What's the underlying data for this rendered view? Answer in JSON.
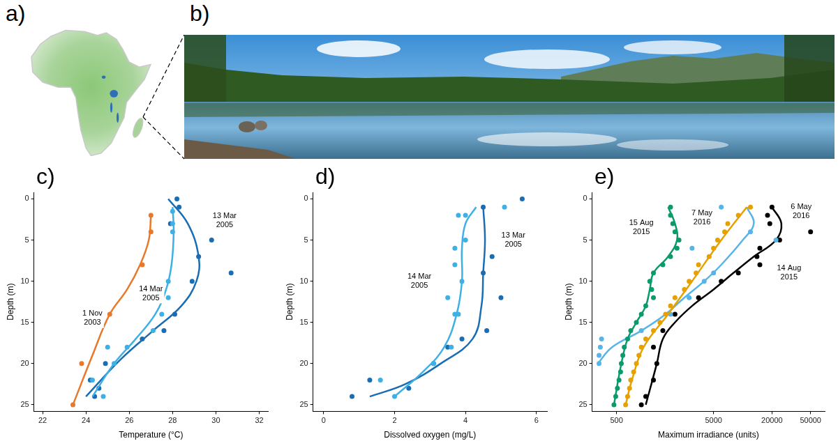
{
  "panel_labels": [
    "a)",
    "b)"
  ],
  "chart_data": [
    {
      "type": "scatter",
      "panel_label": "c)",
      "x_label": "Temperature (°C)",
      "y_label": "Depth (m)",
      "xlim": [
        21.6,
        32.4
      ],
      "xticks": [
        22,
        24,
        26,
        28,
        30,
        32
      ],
      "ylim": [
        25.8,
        -0.8
      ],
      "yticks": [
        0,
        5,
        10,
        15,
        20,
        25
      ],
      "grid": false,
      "series": [
        {
          "color": "#e8792b",
          "marker": "circle",
          "x": [
            27.0,
            27.0,
            26.6,
            25.1,
            23.8,
            23.4
          ],
          "values": [
            2,
            4,
            8,
            14,
            20,
            25
          ],
          "fit": {
            "x": [
              27.0,
              26.9,
              26.5,
              25.9,
              25.1,
              24.3,
              23.4
            ],
            "values": [
              2,
              5,
              8,
              11,
              14,
              19,
              25
            ]
          }
        },
        {
          "color": "#3fb0e6",
          "marker": "circle",
          "x": [
            28.0,
            28.0,
            28.0,
            27.8,
            27.8,
            27.5,
            27.1,
            25.9,
            25.0,
            25.3,
            24.3,
            24.8
          ],
          "values": [
            1.5,
            3,
            4,
            10,
            12,
            14,
            16,
            18,
            18,
            20,
            22,
            24
          ],
          "fit": {
            "x": [
              28.0,
              28.05,
              27.95,
              27.7,
              27.2,
              26.3,
              25.3,
              24.3
            ],
            "values": [
              1,
              4,
              8,
              11,
              14,
              17,
              20,
              24
            ]
          }
        },
        {
          "color": "#1a6db3",
          "marker": "circle",
          "x": [
            28.2,
            28.3,
            27.9,
            29.8,
            29.2,
            30.7,
            28.9,
            28.1,
            27.6,
            26.6,
            24.9,
            24.2,
            24.6,
            24.4
          ],
          "values": [
            0,
            1,
            3,
            5,
            7,
            9,
            10,
            14,
            16,
            17,
            20,
            22,
            23,
            24
          ],
          "fit": {
            "x": [
              27.8,
              28.7,
              29.2,
              29.1,
              28.4,
              27.1,
              25.6,
              24.0
            ],
            "values": [
              0,
              3,
              7,
              10,
              13,
              16,
              19.5,
              24
            ]
          }
        }
      ],
      "annotations": [
        {
          "text": "13 Mar 2005",
          "x": 30.4,
          "y": 2.6
        },
        {
          "text": "14 Mar 2005",
          "x": 27.0,
          "y": 11.5
        },
        {
          "text": "1 Nov 2003",
          "x": 24.3,
          "y": 14.5
        }
      ]
    },
    {
      "type": "scatter",
      "panel_label": "d)",
      "x_label": "Dissolved oxygen (mg/L)",
      "y_label": "Depth (m)",
      "xlim": [
        -0.3,
        6.3
      ],
      "xticks": [
        0,
        2,
        4,
        6
      ],
      "ylim": [
        25.8,
        -0.8
      ],
      "yticks": [
        0,
        5,
        10,
        15,
        20,
        25
      ],
      "grid": false,
      "series": [
        {
          "color": "#3fb0e6",
          "marker": "circle",
          "x": [
            5.1,
            4.0,
            3.8,
            4.0,
            3.7,
            3.7,
            3.9,
            3.5,
            3.8,
            3.7,
            3.6,
            3.1,
            1.6,
            2.0
          ],
          "values": [
            1,
            2,
            2,
            5,
            6,
            8,
            10,
            12,
            14,
            14,
            18,
            20,
            22,
            24
          ],
          "fit": {
            "x": [
              4.3,
              4.0,
              3.9,
              3.9,
              3.75,
              3.4,
              2.8,
              2.0
            ],
            "values": [
              1,
              3,
              6,
              10,
              14,
              18,
              21,
              24
            ]
          }
        },
        {
          "color": "#1a6db3",
          "marker": "circle",
          "x": [
            5.6,
            4.5,
            4.75,
            4.5,
            5.0,
            4.6,
            3.9,
            3.5,
            3.1,
            1.3,
            2.4,
            0.8
          ],
          "values": [
            0,
            1,
            7,
            9,
            12,
            16,
            17,
            18,
            20,
            22,
            23,
            24
          ],
          "fit": {
            "x": [
              4.5,
              4.55,
              4.5,
              4.45,
              4.2,
              3.3,
              2.3,
              1.3
            ],
            "values": [
              1,
              5,
              9,
              13,
              17,
              20,
              22.5,
              24
            ]
          }
        }
      ],
      "annotations": [
        {
          "text": "13 Mar 2005",
          "x": 5.35,
          "y": 5
        },
        {
          "text": "14 Mar 2005",
          "x": 2.7,
          "y": 10
        }
      ]
    },
    {
      "type": "scatter",
      "panel_label": "e)",
      "x_label": "Maximum irradiance (units)",
      "y_label": "Depth (m)",
      "log": "x",
      "xlim": [
        280,
        70000
      ],
      "xticks": [
        500,
        5000,
        20000,
        50000
      ],
      "ylim": [
        25.8,
        -0.8
      ],
      "yticks": [
        0,
        5,
        10,
        15,
        20,
        25
      ],
      "grid": false,
      "series": [
        {
          "color": "#0a9a6b",
          "marker": "circle",
          "x": [
            1800,
            1800,
            1900,
            2000,
            2200,
            2100,
            1800,
            1500,
            1200,
            1100,
            1150,
            1200,
            1000,
            900,
            800,
            700,
            650,
            600,
            580,
            560,
            550,
            530,
            510,
            490,
            470
          ],
          "values": [
            1,
            2,
            3,
            4,
            5,
            6,
            7,
            8,
            9,
            10,
            11,
            12,
            13,
            14,
            15,
            16,
            17,
            18,
            19,
            20,
            21,
            22,
            23,
            24,
            25
          ],
          "fit": {
            "x": [
              1700,
              2000,
              2100,
              1700,
              1200,
              1100,
              1000,
              800,
              650,
              560,
              470
            ],
            "values": [
              1,
              3,
              5,
              7,
              9,
              11,
              13,
              15,
              17,
              20,
              25
            ]
          }
        },
        {
          "color": "#e6a000",
          "marker": "circle",
          "x": [
            12000,
            9000,
            7000,
            6500,
            5500,
            5000,
            4500,
            3500,
            3300,
            2800,
            2500,
            2000,
            1800,
            1600,
            1400,
            1200,
            1000,
            900,
            850,
            800,
            750,
            700,
            680,
            650,
            620
          ],
          "values": [
            1,
            2,
            3,
            4,
            5,
            6,
            7,
            8,
            9,
            10,
            11,
            12,
            13,
            14,
            15,
            16,
            17,
            18,
            19,
            20,
            21,
            22,
            23,
            24,
            25
          ],
          "fit": {
            "x": [
              11000,
              6000,
              3000,
              1700,
              950,
              720,
              620
            ],
            "values": [
              1,
              5,
              10,
              14,
              18,
              22,
              25
            ]
          }
        },
        {
          "color": "#56b4e9",
          "marker": "circle",
          "x": [
            6000,
            12000,
            22000,
            3000,
            5000,
            4000,
            2800,
            1800,
            900,
            350,
            340,
            330,
            330
          ],
          "values": [
            1,
            4,
            5,
            6,
            9,
            10,
            12,
            14,
            16,
            17,
            18,
            19,
            20
          ],
          "fit": {
            "x": [
              11000,
              13000,
              10000,
              6000,
              4000,
              2500,
              1600,
              900,
              450,
              320
            ],
            "values": [
              1,
              3,
              5,
              8,
              10,
              12,
              14,
              16,
              18,
              20
            ]
          }
        },
        {
          "color": "#000000",
          "marker": "circle",
          "x": [
            20000,
            18000,
            19000,
            50000,
            24000,
            15000,
            14000,
            15000,
            9000,
            6000,
            3500,
            2000,
            1500,
            1200,
            1300,
            1200,
            1000,
            900
          ],
          "values": [
            1,
            2,
            3,
            4,
            5,
            6,
            7,
            8,
            9,
            10,
            12,
            14,
            16,
            18,
            20,
            22,
            24,
            25
          ],
          "fit": {
            "x": [
              20000,
              25000,
              22000,
              13000,
              8000,
              5000,
              3000,
              2000,
              1500,
              1300,
              1000
            ],
            "values": [
              1,
              3,
              5,
              7,
              9,
              11,
              13,
              15,
              17,
              20,
              25
            ]
          }
        }
      ],
      "annotations": [
        {
          "text": "15 Aug 2015",
          "x": 900,
          "y": 3.5
        },
        {
          "text": "7 May 2016",
          "x": 3800,
          "y": 2.3
        },
        {
          "text": "14 Aug 2015",
          "x": 30000,
          "y": 9
        },
        {
          "text": "6 May 2016",
          "x": 40000,
          "y": 1.5
        }
      ]
    }
  ]
}
